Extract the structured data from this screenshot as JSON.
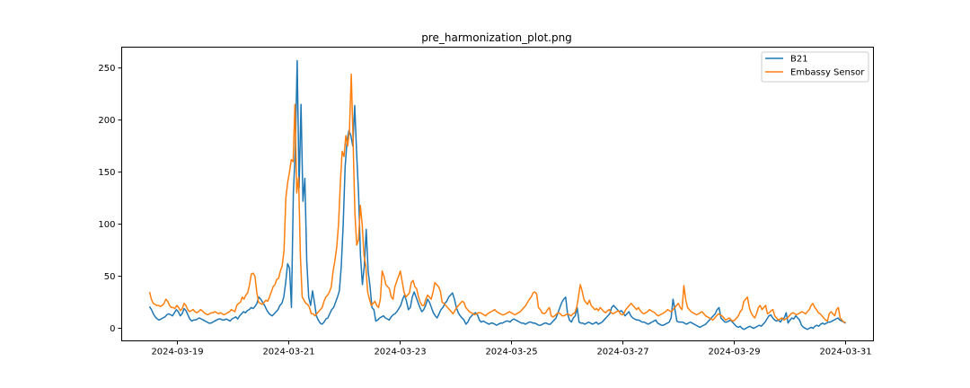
{
  "chart_data": {
    "type": "line",
    "title": "pre_harmonization_plot.png",
    "xlabel": "",
    "ylabel": "",
    "x_axis": "time",
    "x_start": "2024-03-18 12:00",
    "x_end": "2024-03-31 00:00",
    "xlim": [
      "2024-03-18",
      "2024-03-31 12:00"
    ],
    "ylim": [
      -12,
      270
    ],
    "x_ticks": [
      "2024-03-19",
      "2024-03-21",
      "2024-03-23",
      "2024-03-25",
      "2024-03-27",
      "2024-03-29",
      "2024-03-31"
    ],
    "y_ticks": [
      0,
      50,
      100,
      150,
      200,
      250
    ],
    "grid": false,
    "legend_position": "top-right",
    "series": [
      {
        "name": "B21",
        "color": "#1f77b4",
        "values": [
          21,
          18,
          14,
          11,
          9,
          8,
          9,
          10,
          11,
          13,
          14,
          13,
          12,
          15,
          18,
          16,
          12,
          14,
          19,
          17,
          13,
          9,
          7,
          8,
          8,
          9,
          10,
          9,
          8,
          7,
          6,
          5,
          5,
          6,
          7,
          8,
          9,
          9,
          8,
          8,
          9,
          8,
          7,
          9,
          10,
          11,
          9,
          12,
          14,
          16,
          15,
          17,
          18,
          20,
          19,
          21,
          24,
          30,
          28,
          25,
          22,
          18,
          15,
          13,
          12,
          14,
          16,
          18,
          22,
          24,
          30,
          44,
          62,
          58,
          20,
          130,
          170,
          257,
          135,
          215,
          122,
          144,
          64,
          30,
          22,
          36,
          25,
          12,
          8,
          5,
          4,
          6,
          9,
          10,
          14,
          18,
          20,
          25,
          30,
          36,
          60,
          100,
          155,
          180,
          190,
          185,
          175,
          214,
          168,
          130,
          70,
          42,
          60,
          95,
          55,
          40,
          20,
          18,
          7,
          8,
          10,
          11,
          12,
          10,
          9,
          8,
          11,
          13,
          14,
          16,
          19,
          22,
          28,
          32,
          26,
          18,
          20,
          30,
          35,
          30,
          25,
          20,
          16,
          18,
          22,
          28,
          25,
          20,
          15,
          12,
          10,
          14,
          18,
          20,
          24,
          26,
          30,
          32,
          34,
          28,
          20,
          15,
          12,
          10,
          8,
          4,
          6,
          10,
          12,
          14,
          15,
          13,
          8,
          6,
          7,
          6,
          5,
          4,
          5,
          5,
          4,
          3,
          4,
          5,
          5,
          6,
          7,
          7,
          6,
          8,
          9,
          8,
          7,
          6,
          5,
          5,
          4,
          5,
          6,
          6,
          5,
          5,
          4,
          3,
          3,
          4,
          5,
          5,
          4,
          4,
          6,
          8,
          10,
          15,
          20,
          25,
          28,
          30,
          14,
          8,
          6,
          10,
          12,
          20,
          6,
          5,
          5,
          4,
          5,
          6,
          5,
          4,
          5,
          6,
          4,
          5,
          6,
          8,
          10,
          12,
          14,
          20,
          22,
          20,
          18,
          16,
          17,
          15,
          12,
          14,
          16,
          12,
          10,
          9,
          8,
          8,
          7,
          6,
          6,
          5,
          4,
          5,
          6,
          7,
          8,
          5,
          4,
          3,
          3,
          4,
          5,
          6,
          10,
          28,
          18,
          7,
          6,
          6,
          6,
          5,
          4,
          5,
          6,
          5,
          4,
          3,
          2,
          1,
          2,
          3,
          4,
          6,
          8,
          10,
          12,
          14,
          18,
          20,
          10,
          8,
          6,
          6,
          7,
          8,
          6,
          4,
          2,
          1,
          2,
          0,
          -1,
          0,
          1,
          2,
          1,
          0,
          1,
          2,
          3,
          2,
          4,
          6,
          9,
          12,
          13,
          10,
          8,
          7,
          8,
          6,
          9,
          10,
          15,
          5,
          8,
          10,
          9,
          12,
          10,
          8,
          3,
          1,
          0,
          -1,
          0,
          1,
          0,
          2,
          3,
          2,
          4,
          5,
          4,
          5,
          6,
          6,
          7,
          8,
          9,
          10,
          8,
          7,
          6,
          5
        ]
      },
      {
        "name": "Embassy Sensor",
        "color": "#ff7f0e",
        "values": [
          35,
          28,
          24,
          23,
          22,
          22,
          21,
          22,
          24,
          28,
          26,
          22,
          20,
          20,
          19,
          22,
          20,
          17,
          19,
          24,
          22,
          18,
          16,
          17,
          18,
          16,
          15,
          16,
          18,
          17,
          15,
          14,
          13,
          14,
          15,
          15,
          16,
          15,
          14,
          15,
          14,
          13,
          14,
          15,
          16,
          18,
          17,
          16,
          22,
          24,
          25,
          30,
          28,
          32,
          34,
          42,
          52,
          53,
          50,
          35,
          25,
          24,
          23,
          25,
          27,
          26,
          30,
          35,
          40,
          42,
          47,
          48,
          55,
          60,
          75,
          125,
          140,
          150,
          162,
          160,
          215,
          130,
          145,
          70,
          30,
          27,
          24,
          23,
          20,
          14,
          14,
          12,
          14,
          16,
          18,
          20,
          26,
          30,
          32,
          35,
          40,
          55,
          65,
          78,
          100,
          140,
          170,
          165,
          185,
          175,
          190,
          244,
          180,
          110,
          80,
          85,
          118,
          100,
          70,
          60,
          35,
          28,
          22,
          24,
          26,
          22,
          20,
          28,
          55,
          50,
          42,
          40,
          38,
          30,
          28,
          40,
          45,
          50,
          55,
          45,
          35,
          30,
          32,
          34,
          44,
          46,
          40,
          38,
          30,
          25,
          22,
          22,
          28,
          32,
          30,
          28,
          35,
          44,
          42,
          40,
          36,
          25,
          24,
          22,
          20,
          18,
          16,
          14,
          17,
          20,
          22,
          24,
          26,
          25,
          20,
          18,
          16,
          15,
          14,
          13,
          14,
          15,
          15,
          14,
          13,
          12,
          14,
          15,
          16,
          17,
          18,
          16,
          15,
          14,
          13,
          13,
          14,
          15,
          16,
          15,
          14,
          13,
          14,
          15,
          16,
          18,
          20,
          22,
          25,
          28,
          30,
          34,
          35,
          33,
          20,
          18,
          15,
          14,
          15,
          18,
          20,
          12,
          11,
          12,
          14,
          15,
          14,
          12,
          12,
          13,
          14,
          13,
          12,
          14,
          15,
          20,
          30,
          42,
          36,
          28,
          25,
          23,
          27,
          22,
          20,
          18,
          19,
          17,
          20,
          18,
          16,
          15,
          17,
          18,
          15,
          14,
          15,
          16,
          17,
          14,
          13,
          14,
          18,
          20,
          22,
          24,
          22,
          20,
          18,
          20,
          17,
          15,
          14,
          15,
          16,
          18,
          17,
          16,
          15,
          13,
          12,
          13,
          14,
          15,
          16,
          18,
          17,
          16,
          18,
          20,
          22,
          24,
          20,
          18,
          41,
          28,
          20,
          18,
          16,
          15,
          14,
          13,
          14,
          15,
          16,
          14,
          12,
          11,
          10,
          9,
          8,
          10,
          12,
          14,
          13,
          12,
          10,
          8,
          9,
          10,
          8,
          7,
          8,
          10,
          12,
          16,
          18,
          26,
          28,
          30,
          20,
          15,
          12,
          10,
          14,
          20,
          22,
          18,
          20,
          22,
          14,
          15,
          17,
          18,
          12,
          10,
          8,
          9,
          10,
          8,
          9,
          10,
          12,
          14,
          15,
          14,
          13,
          14,
          15,
          16,
          15,
          14,
          16,
          18,
          22,
          24,
          20,
          18,
          15,
          14,
          12,
          10,
          8,
          7,
          14,
          16,
          14,
          12,
          18,
          20,
          10,
          8,
          6,
          6
        ]
      }
    ]
  }
}
